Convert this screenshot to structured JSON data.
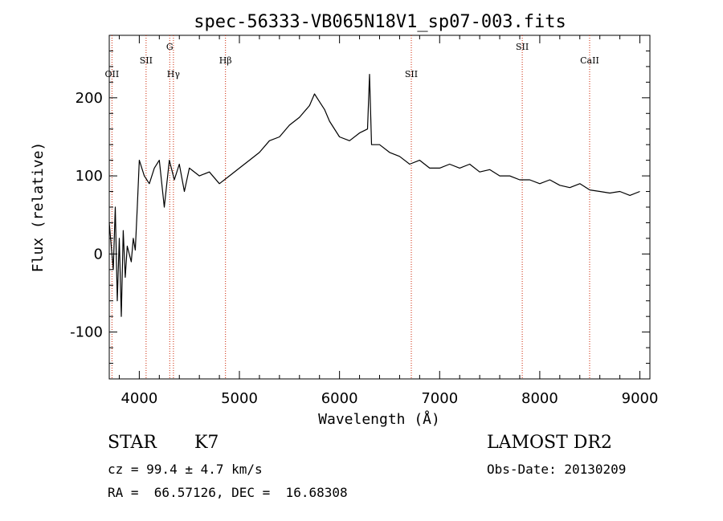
{
  "chart_data": {
    "type": "line",
    "title": "spec-56333-VB065N18V1_sp07-003.fits",
    "xlabel": "Wavelength (Å)",
    "ylabel": "Flux (relative)",
    "xlim": [
      3700,
      9100
    ],
    "ylim": [
      -160,
      280
    ],
    "xticks": [
      4000,
      5000,
      6000,
      7000,
      8000,
      9000
    ],
    "yticks": [
      -100,
      0,
      100,
      200
    ],
    "grid": false,
    "line_color": "#000000",
    "marker_color": "#cc2200",
    "series": [
      {
        "x": [
          3700,
          3720,
          3740,
          3760,
          3780,
          3800,
          3820,
          3840,
          3860,
          3880,
          3900,
          3920,
          3940,
          3960,
          3980,
          4000,
          4050,
          4100,
          4150,
          4200,
          4250,
          4300,
          4350,
          4400,
          4450,
          4500,
          4600,
          4700,
          4800,
          4900,
          5000,
          5100,
          5200,
          5300,
          5400,
          5500,
          5600,
          5700,
          5750,
          5800,
          5850,
          5900,
          6000,
          6100,
          6200,
          6280,
          6300,
          6320,
          6400,
          6500,
          6600,
          6700,
          6800,
          6900,
          7000,
          7100,
          7200,
          7300,
          7400,
          7500,
          7600,
          7700,
          7800,
          7900,
          8000,
          8100,
          8200,
          8300,
          8400,
          8500,
          8600,
          8700,
          8800,
          8900,
          9000
        ],
        "y": [
          40,
          10,
          -20,
          60,
          -60,
          20,
          -80,
          30,
          -30,
          10,
          0,
          -10,
          20,
          5,
          60,
          120,
          100,
          90,
          110,
          120,
          60,
          120,
          95,
          115,
          80,
          110,
          100,
          105,
          90,
          100,
          110,
          120,
          130,
          145,
          150,
          165,
          175,
          190,
          205,
          195,
          185,
          170,
          150,
          145,
          155,
          160,
          230,
          140,
          140,
          130,
          125,
          115,
          120,
          110,
          110,
          115,
          110,
          115,
          105,
          108,
          100,
          100,
          95,
          95,
          90,
          95,
          88,
          85,
          90,
          82,
          80,
          78,
          80,
          75,
          80
        ]
      }
    ],
    "lines": [
      {
        "label": "OII",
        "x": 3727
      },
      {
        "label": "SII",
        "x": 4068
      },
      {
        "label": "G",
        "x": 4304
      },
      {
        "label": "Hγ",
        "x": 4341
      },
      {
        "label": "Hβ",
        "x": 4861
      },
      {
        "label": "SII",
        "x": 6717
      },
      {
        "label": "SII",
        "x": 7825
      },
      {
        "label": "CaII",
        "x": 8498
      }
    ]
  },
  "info": {
    "class_label": "STAR",
    "subclass_label": "K7",
    "survey": "LAMOST DR2",
    "cz": "cz = 99.4 ± 4.7 km/s",
    "obs_date": "Obs-Date: 20130209",
    "radec": "RA =  66.57126, DEC =  16.68308"
  }
}
